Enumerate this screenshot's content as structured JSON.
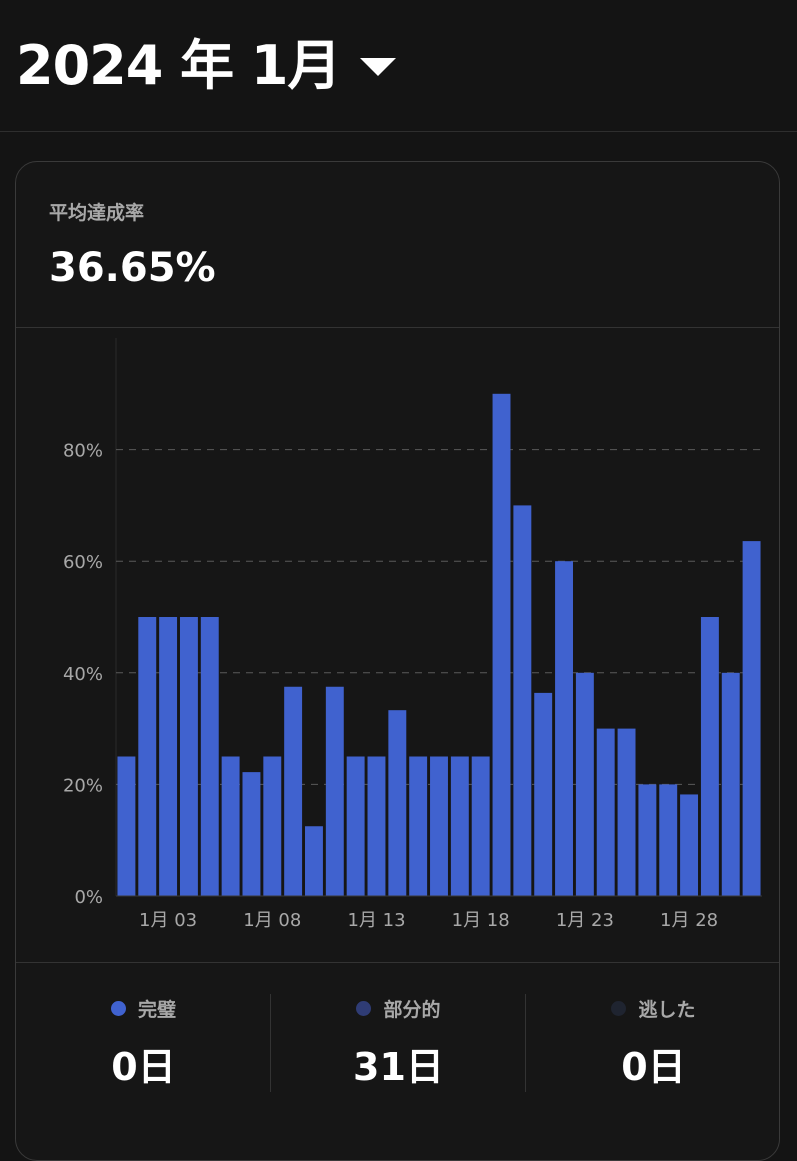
{
  "header": {
    "month_title": "2024 年 1月"
  },
  "summary": {
    "label": "平均達成率",
    "value": "36.65%"
  },
  "colors": {
    "bar": "#4062cf",
    "complete": "#4062cf",
    "partial": "#2f3c75",
    "missed": "#1f2430",
    "grid": "#5a5a5a",
    "tick": "#a8a8a8"
  },
  "chart_data": {
    "type": "bar",
    "categories": [
      "1月 01",
      "1月 02",
      "1月 03",
      "1月 04",
      "1月 05",
      "1月 06",
      "1月 07",
      "1月 08",
      "1月 09",
      "1月 10",
      "1月 11",
      "1月 12",
      "1月 13",
      "1月 14",
      "1月 15",
      "1月 16",
      "1月 17",
      "1月 18",
      "1月 19",
      "1月 20",
      "1月 21",
      "1月 22",
      "1月 23",
      "1月 24",
      "1月 25",
      "1月 26",
      "1月 27",
      "1月 28",
      "1月 29",
      "1月 30",
      "1月 31"
    ],
    "values": [
      25,
      50,
      50,
      50,
      50,
      25,
      22.2,
      25,
      37.5,
      12.5,
      37.5,
      25,
      25,
      33.3,
      25,
      25,
      25,
      25,
      90,
      70,
      36.4,
      60,
      40,
      30,
      30,
      20,
      20,
      18.2,
      50,
      40,
      63.6
    ],
    "x_tick_labels": [
      "1月 03",
      "1月 08",
      "1月 13",
      "1月 18",
      "1月 23",
      "1月 28"
    ],
    "x_tick_indices": [
      2,
      7,
      12,
      17,
      22,
      27
    ],
    "y_tick_labels": [
      "0%",
      "20%",
      "40%",
      "60%",
      "80%"
    ],
    "y_tick_values": [
      0,
      20,
      40,
      60,
      80
    ],
    "ylim": [
      0,
      100
    ],
    "grid": true,
    "xlabel": "",
    "ylabel": ""
  },
  "legend": [
    {
      "label": "完璧",
      "value": "0日",
      "color_key": "complete"
    },
    {
      "label": "部分的",
      "value": "31日",
      "color_key": "partial"
    },
    {
      "label": "逃した",
      "value": "0日",
      "color_key": "missed"
    }
  ]
}
